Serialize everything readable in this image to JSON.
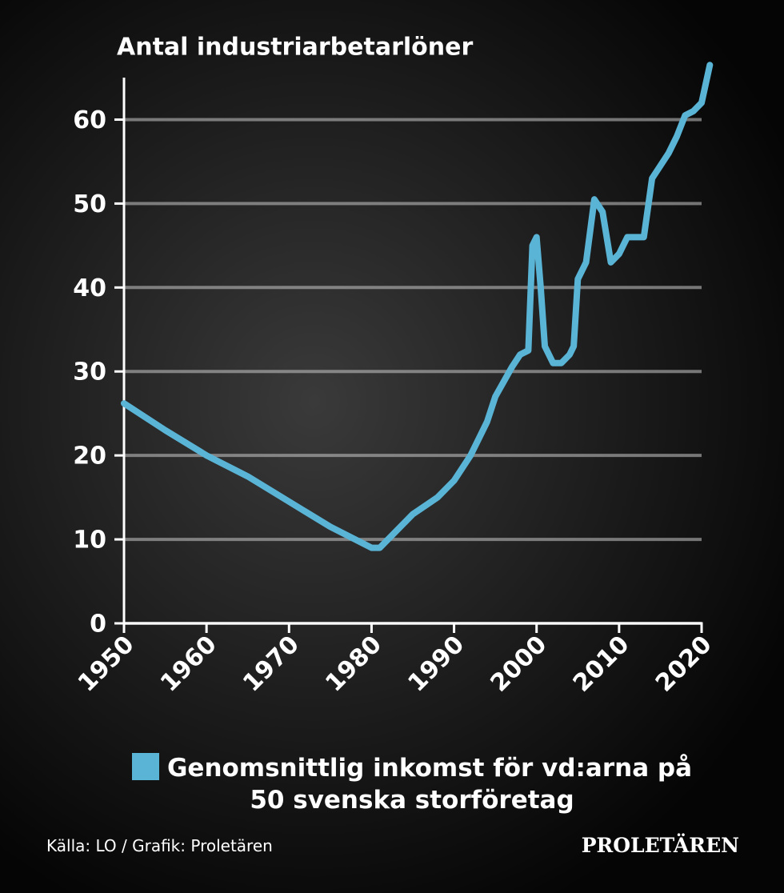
{
  "chart_data": {
    "type": "line",
    "title": "Antal industriarbetarlöner",
    "x": [
      1950,
      1955,
      1960,
      1965,
      1970,
      1975,
      1978,
      1980,
      1981,
      1983,
      1985,
      1988,
      1990,
      1992,
      1994,
      1995,
      1997,
      1998,
      1999,
      1999.5,
      2000,
      2000.5,
      2001,
      2002,
      2003,
      2004,
      2004.5,
      2005,
      2006,
      2007,
      2008,
      2009,
      2010,
      2011,
      2012,
      2013,
      2014,
      2015,
      2016,
      2017,
      2018,
      2019,
      2020,
      2021
    ],
    "series": [
      {
        "name": "Genomsnittlig inkomst för vd:arna på 50 svenska storföretag",
        "color": "#5ab4d6",
        "values": [
          26.2,
          23,
          20,
          17.5,
          14.5,
          11.5,
          10,
          9,
          9,
          11,
          13,
          15,
          17,
          20,
          24,
          27,
          30.5,
          32,
          32.5,
          45,
          46,
          40,
          33,
          31,
          31,
          32,
          33,
          41,
          43,
          50.5,
          49,
          43,
          44,
          46,
          46,
          46,
          53,
          54.5,
          56,
          58,
          60.5,
          61,
          62,
          66.5
        ]
      }
    ],
    "xlim": [
      1950,
      2020
    ],
    "ylim": [
      0,
      65
    ],
    "xticks": [
      1950,
      1960,
      1970,
      1980,
      1990,
      2000,
      2010,
      2020
    ],
    "yticks": [
      0,
      10,
      20,
      30,
      40,
      50,
      60
    ],
    "grid": true,
    "source": "Källa: LO / Grafik: Proletären",
    "brand": "PROLETÄREN"
  }
}
